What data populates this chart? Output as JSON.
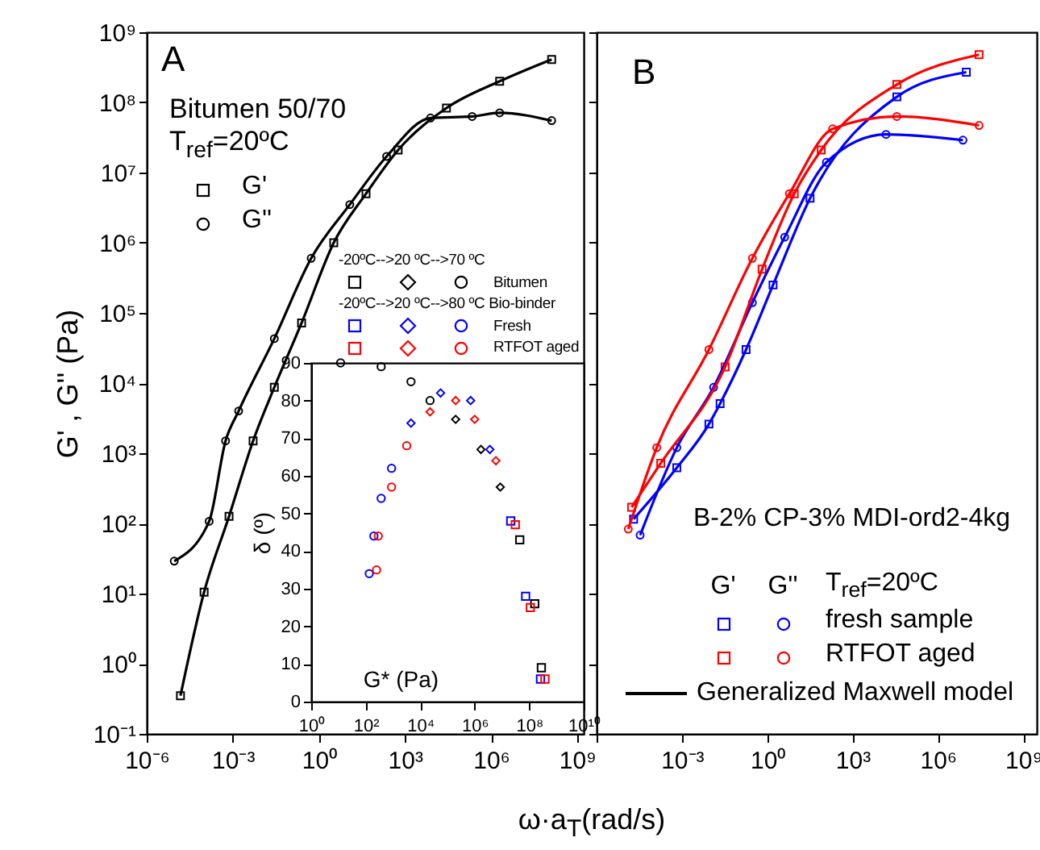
{
  "chart_data": [
    {
      "type": "scatter",
      "ylabel": "G' , G'' (Pa)",
      "xlabel": "ω·a$_{T}$(rad/s)",
      "log": "xy",
      "legend": "top left",
      "annotations": [
        "A",
        "Bitumen 50/70",
        "T$_{ref}$=20ºC"
      ],
      "xlim": [
        1e-06,
        1700000000.0
      ],
      "xticks": [
        {
          "value": 1e-06,
          "label": "10⁻⁶"
        },
        {
          "value": 0.001,
          "label": "10⁻³"
        },
        {
          "value": 1,
          "label": "10⁰"
        },
        {
          "value": 1000,
          "label": "10³"
        },
        {
          "value": 1000000,
          "label": "10⁶"
        },
        {
          "value": 1000000000,
          "label": "10⁹"
        }
      ],
      "ylim": [
        0.1,
        1000000000.0
      ],
      "yticks": [
        {
          "value": 0.1,
          "label": "10⁻¹"
        },
        {
          "value": 1,
          "label": "10⁰"
        },
        {
          "value": 10,
          "label": "10¹"
        },
        {
          "value": 100,
          "label": "10²"
        },
        {
          "value": 1000,
          "label": "10³"
        },
        {
          "value": 10000,
          "label": "10⁴"
        },
        {
          "value": 100000,
          "label": "10⁵"
        },
        {
          "value": 1000000,
          "label": "10⁶"
        },
        {
          "value": 10000000,
          "label": "10⁷"
        },
        {
          "value": 100000000,
          "label": "10⁸"
        },
        {
          "value": 1000000000,
          "label": "10⁹"
        }
      ],
      "series": [
        {
          "name": "G'",
          "color": "#000000",
          "marker": "square",
          "x": [
            1.5e-05,
            0.0001,
            0.00074,
            0.0051,
            0.028,
            0.25,
            3.3,
            44,
            580,
            28000.0,
            2000000.0,
            130000000.0
          ],
          "values": [
            0.35,
            10.5,
            126,
            1500,
            8700,
            72000.0,
            1000000.0,
            5000000.0,
            21000000.0,
            83000000.0,
            200000000.0,
            410000000.0
          ]
        },
        {
          "name": "G''",
          "color": "#000000",
          "marker": "circle",
          "x": [
            9.1e-06,
            0.00015,
            0.00056,
            0.0016,
            0.028,
            0.54,
            12,
            230,
            7800,
            220000.0,
            2000000.0,
            130000000.0
          ],
          "values": [
            29,
            107,
            1500,
            4000,
            43000.0,
            600000.0,
            3500000.0,
            17000000.0,
            60000000.0,
            63000000.0,
            71000000.0,
            55000000.0
          ]
        },
        {
          "type": "line",
          "color": "#000000",
          "x": [
            1.5e-05,
            0.0001,
            0.00074,
            0.0051,
            0.028,
            0.25,
            3.3,
            44,
            580,
            28000.0,
            2000000.0,
            130000000.0
          ],
          "values": [
            0.35,
            10.5,
            126,
            1500,
            8700,
            72000.0,
            1000000.0,
            5000000.0,
            21000000.0,
            83000000.0,
            200000000.0,
            410000000.0
          ]
        },
        {
          "type": "line",
          "color": "#000000",
          "x": [
            9.1e-06,
            0.00015,
            0.00056,
            0.0016,
            0.028,
            0.54,
            12,
            230,
            7800,
            220000.0,
            2000000.0,
            130000000.0
          ],
          "values": [
            29,
            107,
            1500,
            4000,
            43000.0,
            600000.0,
            3500000.0,
            17000000.0,
            60000000.0,
            63000000.0,
            71000000.0,
            55000000.0
          ]
        }
      ]
    },
    {
      "type": "scatter",
      "xlabel": "G* (Pa)",
      "ylabel": "δ (º)",
      "log": "x",
      "legend": "top",
      "annotations": [
        "-20ºC-->20 ºC-->70 ºC",
        "-20ºC-->20 ºC-->80 ºC Bio-binder"
      ],
      "xlim": [
        1,
        10000000000.0
      ],
      "xticks": [
        {
          "value": 1,
          "label": "10⁰"
        },
        {
          "value": 100,
          "label": "10²"
        },
        {
          "value": 10000,
          "label": "10⁴"
        },
        {
          "value": 1000000,
          "label": "10⁶"
        },
        {
          "value": 100000000,
          "label": "10⁸"
        },
        {
          "value": 10000000000,
          "label": "10¹⁰"
        }
      ],
      "ylim": [
        0,
        90
      ],
      "yticks": [
        0,
        10,
        20,
        30,
        40,
        50,
        60,
        70,
        80,
        90
      ],
      "series": [
        {
          "color": "#000000",
          "marker": "square",
          "x": [
            45000000.0,
            160000000.0,
            280000000.0
          ],
          "values": [
            43,
            26,
            9
          ]
        },
        {
          "color": "#000000",
          "marker": "diamond",
          "x": [
            200000.0,
            1700000.0,
            8700000.0
          ],
          "values": [
            75,
            67,
            57
          ]
        },
        {
          "name": "Bitumen",
          "color": "#000000",
          "marker": "circle",
          "x": [
            12,
            370,
            4600,
            23000.0
          ],
          "values": [
            90,
            89,
            85,
            80
          ]
        },
        {
          "color": "#0000ff",
          "marker": "square",
          "x": [
            21000000.0,
            74000000.0,
            260000000.0
          ],
          "values": [
            48,
            28,
            6
          ]
        },
        {
          "color": "#0000ff",
          "marker": "diamond",
          "x": [
            4600,
            56000.0,
            710000.0,
            3600000.0
          ],
          "values": [
            74,
            82,
            80,
            67
          ]
        },
        {
          "name": "Fresh",
          "color": "#0000ff",
          "marker": "circle",
          "x": [
            135,
            200,
            370,
            890
          ],
          "values": [
            34,
            44,
            54,
            62
          ]
        },
        {
          "color": "#ff0000",
          "marker": "square",
          "x": [
            31000000.0,
            110000000.0,
            380000000.0
          ],
          "values": [
            47,
            25,
            6
          ]
        },
        {
          "color": "#ff0000",
          "marker": "diamond",
          "x": [
            23000.0,
            200000.0,
            1000000.0,
            6000000.0
          ],
          "values": [
            77,
            80,
            75,
            64
          ]
        },
        {
          "name": "RTFOT aged",
          "color": "#ff0000",
          "marker": "circle",
          "x": [
            250,
            290,
            890,
            3200
          ],
          "values": [
            35,
            44,
            57,
            68
          ]
        }
      ]
    },
    {
      "type": "scatter",
      "log": "xy",
      "legend": "bottom right",
      "tick_labels": "x",
      "annotations": [
        "B",
        "B-2% CP-3% MDI-ord2-4kg",
        "G'",
        "G''",
        "T$_{ref}$=20ºC",
        "Generalized Maxwell model"
      ],
      "xlim": [
        1e-06,
        3000000000.0
      ],
      "xticks": [
        {
          "value": 1e-06,
          "label": null
        },
        {
          "value": 0.001,
          "label": "10⁻³"
        },
        {
          "value": 1,
          "label": "10⁰"
        },
        {
          "value": 1000,
          "label": "10³"
        },
        {
          "value": 1000000,
          "label": "10⁶"
        },
        {
          "value": 1000000000,
          "label": "10⁹"
        }
      ],
      "ylim": [
        0.1,
        1000000000.0
      ],
      "yticks": [
        {
          "value": 0.1,
          "label": null
        },
        {
          "value": 1,
          "label": null
        },
        {
          "value": 10,
          "label": null
        },
        {
          "value": 100,
          "label": null
        },
        {
          "value": 1000,
          "label": null
        },
        {
          "value": 10000,
          "label": null
        },
        {
          "value": 100000,
          "label": null
        },
        {
          "value": 1000000,
          "label": null
        },
        {
          "value": 10000000,
          "label": null
        },
        {
          "value": 100000000,
          "label": null
        },
        {
          "value": 1000000000,
          "label": null
        }
      ],
      "series": [
        {
          "color": "#0000ff",
          "marker": "square",
          "x": [
            2e-05,
            0.00066,
            0.0089,
            0.022,
            0.18,
            1.6,
            32,
            36000.0,
            10000000.0
          ],
          "values": [
            115,
            620,
            2600,
            5100,
            30000.0,
            250000.0,
            4300000.0,
            120000000.0,
            270000000.0
          ]
        },
        {
          "name": "fresh sample",
          "color": "#0000ff",
          "marker": "circle",
          "x": [
            3.4e-05,
            0.00066,
            0.013,
            0.3,
            4.1,
            120,
            15000.0,
            7600000.0
          ],
          "values": [
            68,
            1200,
            8700,
            140000.0,
            1200000.0,
            14000000.0,
            35000000.0,
            29000000.0
          ]
        },
        {
          "color": "#ff0000",
          "marker": "square",
          "x": [
            1.7e-05,
            0.00018,
            0.033,
            0.66,
            8.9,
            79,
            36000.0,
            28000000.0
          ],
          "values": [
            170,
            720,
            17000.0,
            420000.0,
            5000000.0,
            21000000.0,
            180000000.0,
            480000000.0
          ]
        },
        {
          "name": "RTFOT aged",
          "color": "#ff0000",
          "marker": "circle",
          "x": [
            1.3e-05,
            0.00013,
            0.0089,
            0.3,
            6.0,
            200,
            36000.0,
            28000000.0
          ],
          "values": [
            83,
            1200,
            30000.0,
            600000.0,
            5000000.0,
            42000000.0,
            63000000.0,
            47000000.0
          ]
        },
        {
          "type": "line",
          "color": "#0000ff",
          "x": [
            2e-05,
            0.00066,
            0.0089,
            0.022,
            0.18,
            1.6,
            32,
            36000.0,
            10000000.0
          ],
          "values": [
            115,
            620,
            2600,
            5100,
            30000.0,
            250000.0,
            4300000.0,
            120000000.0,
            270000000.0
          ]
        },
        {
          "type": "line",
          "color": "#0000ff",
          "x": [
            3.4e-05,
            0.00066,
            0.013,
            0.3,
            4.1,
            120,
            15000.0,
            7600000.0
          ],
          "values": [
            68,
            1200,
            8700,
            140000.0,
            1200000.0,
            14000000.0,
            35000000.0,
            29000000.0
          ]
        },
        {
          "type": "line",
          "color": "#ff0000",
          "x": [
            1.7e-05,
            0.00018,
            0.033,
            0.66,
            8.9,
            79,
            36000.0,
            28000000.0
          ],
          "values": [
            170,
            720,
            17000.0,
            420000.0,
            5000000.0,
            21000000.0,
            180000000.0,
            480000000.0
          ]
        },
        {
          "type": "line",
          "color": "#ff0000",
          "x": [
            1.3e-05,
            0.00013,
            0.0089,
            0.3,
            6.0,
            200,
            36000.0,
            28000000.0
          ],
          "values": [
            83,
            1200,
            30000.0,
            600000.0,
            5000000.0,
            42000000.0,
            63000000.0,
            47000000.0
          ]
        }
      ]
    }
  ]
}
